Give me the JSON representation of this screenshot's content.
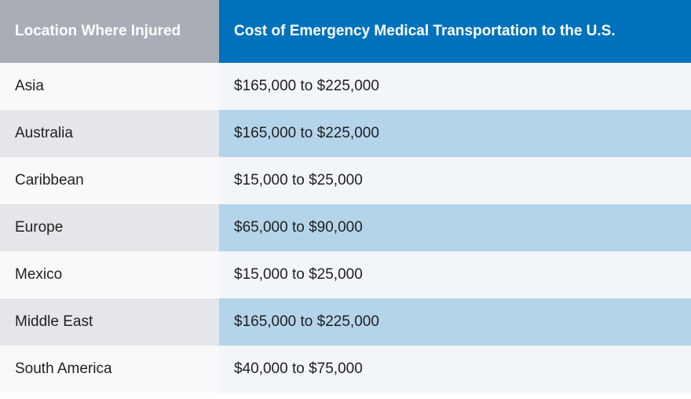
{
  "table": {
    "headers": [
      "Location Where Injured",
      "Cost of Emergency Medical Transportation to the U.S."
    ],
    "rows": [
      {
        "location": "Asia",
        "cost": "$165,000 to $225,000"
      },
      {
        "location": "Australia",
        "cost": "$165,000 to $225,000"
      },
      {
        "location": "Caribbean",
        "cost": "$15,000 to $25,000"
      },
      {
        "location": "Europe",
        "cost": "$65,000 to $90,000"
      },
      {
        "location": "Mexico",
        "cost": "$15,000 to $25,000"
      },
      {
        "location": "Middle East",
        "cost": "$165,000 to $225,000"
      },
      {
        "location": "South America",
        "cost": "$40,000 to $75,000"
      }
    ]
  },
  "colors": {
    "header_left": "#a9adb5",
    "header_right": "#0072bb",
    "stripe_left": "#e5e6ea",
    "stripe_right": "#b4d4ea",
    "plain_left": "#f9f9f9",
    "plain_right": "#f2f6fb"
  }
}
